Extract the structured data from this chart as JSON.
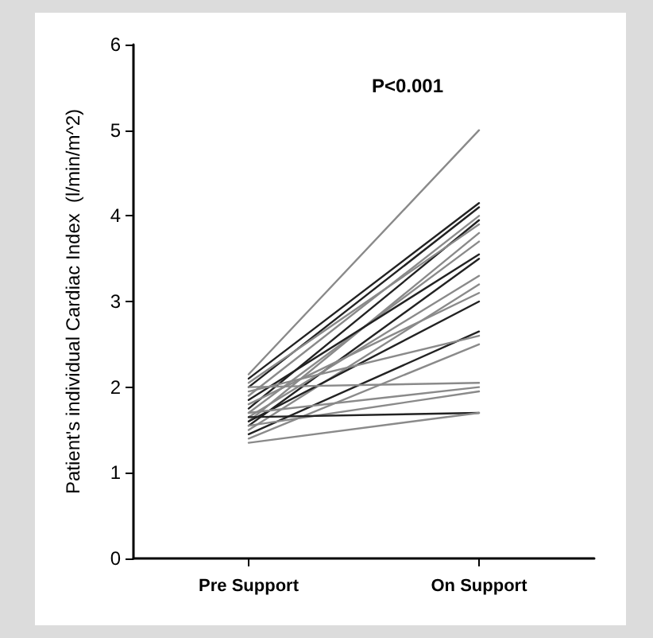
{
  "chart_data": {
    "type": "line",
    "ylabel": "Patient's individual Cardiac Index  (l/min/m^2)",
    "annotations": [
      "P<0.001"
    ],
    "categories": [
      "Pre Support",
      "On Support"
    ],
    "ylim": [
      0,
      6
    ],
    "yticks": [
      0,
      1,
      2,
      3,
      4,
      5,
      6
    ],
    "grid": false,
    "marker": "none",
    "line_style": "solid",
    "series": [
      {
        "color": "#8a8a8a",
        "values": [
          2.15,
          5.0
        ]
      },
      {
        "color": "#222222",
        "values": [
          2.1,
          4.15
        ]
      },
      {
        "color": "#222222",
        "values": [
          2.0,
          4.1
        ]
      },
      {
        "color": "#8a8a8a",
        "values": [
          1.9,
          4.0
        ]
      },
      {
        "color": "#222222",
        "values": [
          1.75,
          3.95
        ]
      },
      {
        "color": "#8a8a8a",
        "values": [
          2.05,
          3.9
        ]
      },
      {
        "color": "#8a8a8a",
        "values": [
          1.6,
          3.8
        ]
      },
      {
        "color": "#8a8a8a",
        "values": [
          1.7,
          3.7
        ]
      },
      {
        "color": "#222222",
        "values": [
          1.85,
          3.55
        ]
      },
      {
        "color": "#222222",
        "values": [
          1.55,
          3.5
        ]
      },
      {
        "color": "#8a8a8a",
        "values": [
          1.65,
          3.3
        ]
      },
      {
        "color": "#8a8a8a",
        "values": [
          1.5,
          3.2
        ]
      },
      {
        "color": "#8a8a8a",
        "values": [
          1.8,
          3.1
        ]
      },
      {
        "color": "#222222",
        "values": [
          1.6,
          3.0
        ]
      },
      {
        "color": "#222222",
        "values": [
          1.45,
          2.65
        ]
      },
      {
        "color": "#8a8a8a",
        "values": [
          1.95,
          2.6
        ]
      },
      {
        "color": "#8a8a8a",
        "values": [
          1.4,
          2.5
        ]
      },
      {
        "color": "#8a8a8a",
        "values": [
          2.0,
          2.05
        ]
      },
      {
        "color": "#8a8a8a",
        "values": [
          1.7,
          2.0
        ]
      },
      {
        "color": "#8a8a8a",
        "values": [
          1.55,
          1.95
        ]
      },
      {
        "color": "#222222",
        "values": [
          1.65,
          1.7
        ]
      },
      {
        "color": "#8a8a8a",
        "values": [
          1.35,
          1.7
        ]
      }
    ]
  }
}
